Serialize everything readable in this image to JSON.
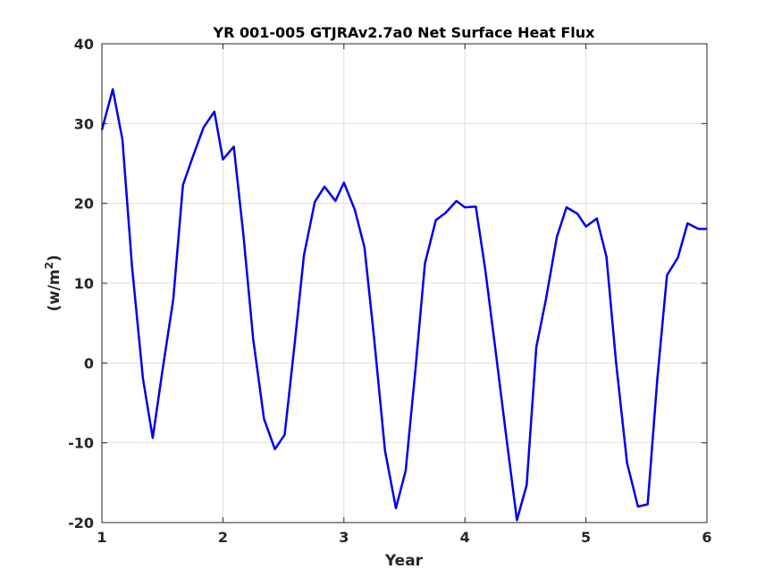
{
  "colors": {
    "line": "#0000ee",
    "grid": "#dfdfdf",
    "axis": "#262626",
    "background": "#ffffff"
  },
  "chart_data": {
    "type": "line",
    "title": "YR 001-005 GTJRAv2.7a0 Net Surface Heat Flux",
    "xlabel": "Year",
    "ylabel_main": "(w/m",
    "ylabel_sup": "2",
    "ylabel_close": ")",
    "xlim": [
      1,
      6
    ],
    "ylim": [
      -20,
      40
    ],
    "grid": true,
    "x_ticks": [
      1,
      2,
      3,
      4,
      5,
      6
    ],
    "y_ticks": [
      -20,
      -10,
      0,
      10,
      20,
      30,
      40
    ],
    "series": [
      {
        "x": [
          1.0,
          1.09,
          1.17,
          1.25,
          1.34,
          1.42,
          1.5,
          1.59,
          1.67,
          1.75,
          1.84,
          1.93,
          2.0,
          2.09,
          2.17,
          2.25,
          2.34,
          2.43,
          2.51,
          2.59,
          2.67,
          2.76,
          2.84,
          2.93,
          3.0,
          3.09,
          3.17,
          3.25,
          3.34,
          3.43,
          3.51,
          3.59,
          3.67,
          3.76,
          3.84,
          3.93,
          4.0,
          4.09,
          4.17,
          4.25,
          4.34,
          4.43,
          4.51,
          4.59,
          4.67,
          4.76,
          4.84,
          4.93,
          5.0,
          5.09,
          5.17,
          5.25,
          5.34,
          5.43,
          5.51,
          5.59,
          5.67,
          5.76,
          5.84,
          5.93,
          6.0
        ],
        "values": [
          29.2,
          34.3,
          28.0,
          12.0,
          -2.0,
          -9.4,
          -1.0,
          8.0,
          22.3,
          25.8,
          29.5,
          31.5,
          25.5,
          27.1,
          16.0,
          3.0,
          -7.0,
          -10.8,
          -9.0,
          2.0,
          13.5,
          20.2,
          22.1,
          20.3,
          22.6,
          19.2,
          14.5,
          3.0,
          -11.0,
          -18.2,
          -13.5,
          -1.0,
          12.5,
          17.9,
          18.8,
          20.3,
          19.5,
          19.6,
          11.5,
          2.0,
          -9.0,
          -19.7,
          -15.3,
          2.0,
          8.0,
          15.8,
          19.5,
          18.7,
          17.1,
          18.1,
          13.3,
          0.0,
          -12.5,
          -18.0,
          -17.7,
          -2.0,
          11.0,
          13.2,
          17.5,
          16.8,
          16.8
        ]
      }
    ]
  }
}
